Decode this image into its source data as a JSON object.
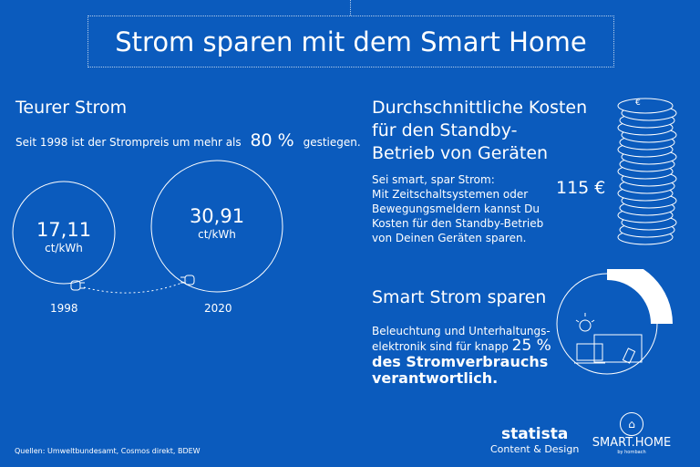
{
  "title": "Strom sparen mit dem Smart Home",
  "left": {
    "heading": "Teurer Strom",
    "text_pre": "Seit 1998 ist der Strompreis um mehr als",
    "percent": "80 %",
    "text_post": "gestiegen.",
    "price_1998": "17,11",
    "unit_1998": "ct/kWh",
    "year_1998": "1998",
    "price_2020": "30,91",
    "unit_2020": "ct/kWh",
    "year_2020": "2020"
  },
  "standby": {
    "heading_lines": [
      "Durchschnittliche Kosten",
      "für den Standby-",
      "Betrieb von Geräten"
    ],
    "text_lines": [
      "Sei smart, spar Strom:",
      "Mit Zeitschaltsystemen oder",
      "Bewegungsmeldern kannst Du",
      "Kosten für den Standby-Betrieb",
      "von Deinen Geräten sparen."
    ],
    "amount": "115 €",
    "coin_symbol": "€"
  },
  "smart": {
    "heading": "Smart Strom sparen",
    "text_lines": [
      "Beleuchtung und Unterhaltungs-",
      "elektronik sind für knapp"
    ],
    "percent": "25 %",
    "bold_lines": [
      "des Stromverbrauchs",
      "verantwortlich."
    ],
    "share": 0.25
  },
  "footer": {
    "sources": "Quellen: Umweltbundesamt, Cosmos direkt, BDEW",
    "statista": "statista",
    "statista_sub": "Content & Design",
    "smarthome": "SMART.HOME",
    "smarthome_sub": "by hornbach"
  }
}
